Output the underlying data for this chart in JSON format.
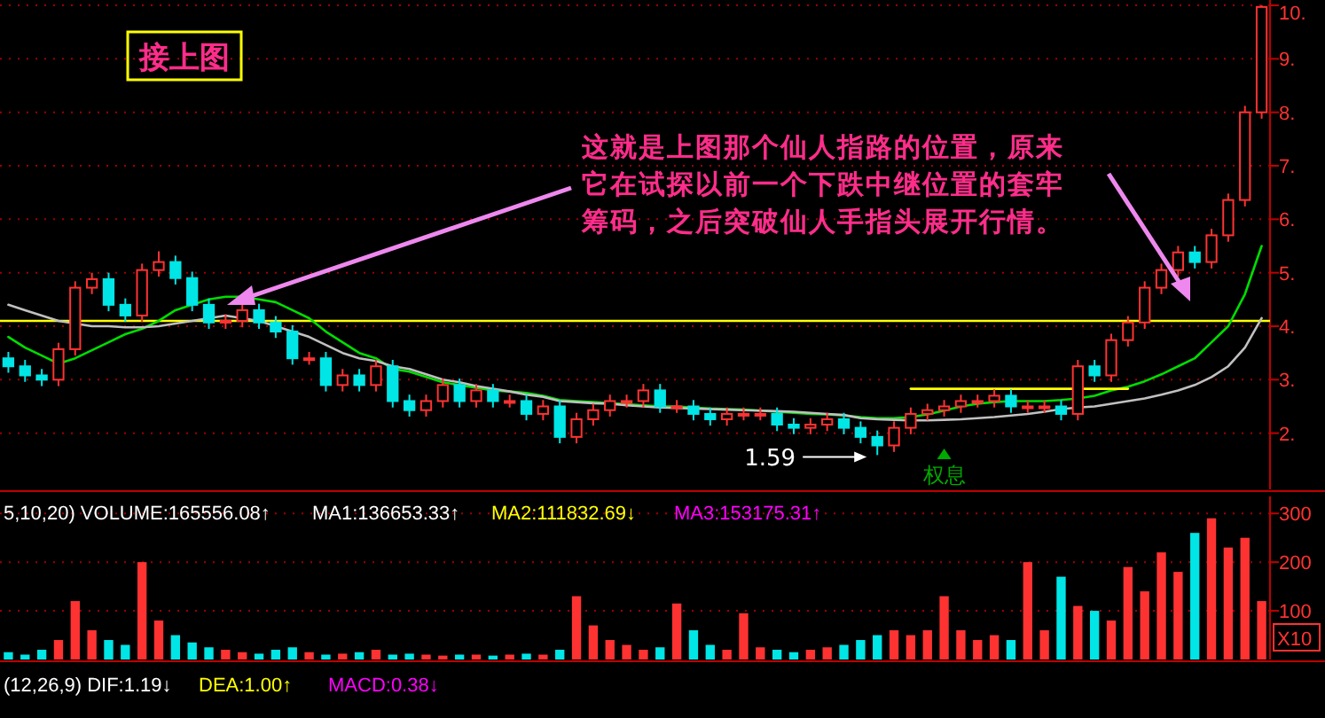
{
  "chart_data": [
    {
      "type": "candlestick",
      "title": "接上图",
      "tick_labels": "y",
      "grid": "y",
      "categories": [
        null,
        null,
        null,
        null,
        null,
        null,
        null,
        null,
        null,
        null,
        null,
        null,
        null,
        null,
        null,
        null,
        null,
        null,
        null,
        null,
        null,
        null,
        null,
        null,
        null,
        null,
        null,
        null,
        null,
        null,
        null,
        null,
        null,
        null,
        null,
        null,
        null,
        null,
        null,
        null,
        null,
        null,
        null,
        null,
        null,
        null,
        null,
        null,
        null,
        null,
        null,
        null,
        null,
        null,
        null,
        null,
        null,
        null,
        null,
        null,
        null,
        null,
        null,
        null,
        null,
        null,
        null,
        null,
        null,
        null,
        null,
        null,
        null,
        null,
        null,
        null
      ],
      "colors": [
        "#00e5e5",
        "#00e5e5",
        "#00e5e5",
        "#ff3232",
        "#ff3232",
        "#ff3232",
        "#00e5e5",
        "#00e5e5",
        "#ff3232",
        "#ff3232",
        "#00e5e5",
        "#00e5e5",
        "#00e5e5",
        "#ff3232",
        "#ff3232",
        "#00e5e5",
        "#00e5e5",
        "#00e5e5",
        "#ff3232",
        "#00e5e5",
        "#ff3232",
        "#00e5e5",
        "#ff3232",
        "#00e5e5",
        "#00e5e5",
        "#ff3232",
        "#ff3232",
        "#00e5e5",
        "#ff3232",
        "#00e5e5",
        "#ff3232",
        "#00e5e5",
        "#ff3232",
        "#00e5e5",
        "#ff3232",
        "#ff3232",
        "#ff3232",
        "#ff3232",
        "#ff3232",
        "#00e5e5",
        "#ff3232",
        "#00e5e5",
        "#00e5e5",
        "#ff3232",
        "#ff3232",
        "#ff3232",
        "#00e5e5",
        "#00e5e5",
        "#ff3232",
        "#ff3232",
        "#00e5e5",
        "#00e5e5",
        "#00e5e5",
        "#ff3232",
        "#ff3232",
        "#ff3232",
        "#ff3232",
        "#ff3232",
        "#ff3232",
        "#ff3232",
        "#00e5e5",
        "#ff3232",
        "#ff3232",
        "#00e5e5",
        "#ff3232",
        "#00e5e5",
        "#ff3232",
        "#ff3232",
        "#ff3232",
        "#ff3232",
        "#ff3232",
        "#00e5e5",
        "#ff3232",
        "#ff3232",
        "#ff3232",
        "#ff3232"
      ],
      "ohlc": [
        [
          3.4,
          3.52,
          3.13,
          3.25
        ],
        [
          3.25,
          3.37,
          2.96,
          3.08
        ],
        [
          3.08,
          3.2,
          2.88,
          3.0
        ],
        [
          3.0,
          3.69,
          2.88,
          3.57
        ],
        [
          3.57,
          4.84,
          3.45,
          4.72
        ],
        [
          4.72,
          5.0,
          4.6,
          4.88
        ],
        [
          4.88,
          5.0,
          4.28,
          4.4
        ],
        [
          4.4,
          4.52,
          4.08,
          4.2
        ],
        [
          4.2,
          5.17,
          4.08,
          5.05
        ],
        [
          5.05,
          5.4,
          4.93,
          5.2
        ],
        [
          5.2,
          5.32,
          4.78,
          4.9
        ],
        [
          4.9,
          5.02,
          4.28,
          4.4
        ],
        [
          4.4,
          4.52,
          3.95,
          4.07
        ],
        [
          4.07,
          4.22,
          3.95,
          4.1
        ],
        [
          4.1,
          4.42,
          3.98,
          4.3
        ],
        [
          4.3,
          4.42,
          3.95,
          4.07
        ],
        [
          4.07,
          4.19,
          3.78,
          3.9
        ],
        [
          3.9,
          4.02,
          3.28,
          3.4
        ],
        [
          3.4,
          3.52,
          3.28,
          3.4
        ],
        [
          3.4,
          3.52,
          2.78,
          2.9
        ],
        [
          2.9,
          3.2,
          2.78,
          3.08
        ],
        [
          3.08,
          3.2,
          2.78,
          2.9
        ],
        [
          2.9,
          3.37,
          2.78,
          3.25
        ],
        [
          3.25,
          3.37,
          2.48,
          2.6
        ],
        [
          2.6,
          2.72,
          2.31,
          2.43
        ],
        [
          2.43,
          2.72,
          2.31,
          2.6
        ],
        [
          2.6,
          3.02,
          2.48,
          2.9
        ],
        [
          2.9,
          3.02,
          2.48,
          2.6
        ],
        [
          2.6,
          2.92,
          2.48,
          2.8
        ],
        [
          2.8,
          2.92,
          2.48,
          2.6
        ],
        [
          2.6,
          2.72,
          2.48,
          2.6
        ],
        [
          2.6,
          2.72,
          2.24,
          2.36
        ],
        [
          2.36,
          2.62,
          2.24,
          2.5
        ],
        [
          2.5,
          2.62,
          1.81,
          1.93
        ],
        [
          1.93,
          2.38,
          1.81,
          2.26
        ],
        [
          2.26,
          2.55,
          2.14,
          2.43
        ],
        [
          2.43,
          2.72,
          2.31,
          2.6
        ],
        [
          2.6,
          2.72,
          2.48,
          2.6
        ],
        [
          2.6,
          2.92,
          2.48,
          2.8
        ],
        [
          2.8,
          2.92,
          2.38,
          2.5
        ],
        [
          2.5,
          2.62,
          2.38,
          2.5
        ],
        [
          2.5,
          2.62,
          2.24,
          2.36
        ],
        [
          2.36,
          2.48,
          2.14,
          2.26
        ],
        [
          2.26,
          2.48,
          2.14,
          2.36
        ],
        [
          2.36,
          2.48,
          2.24,
          2.36
        ],
        [
          2.36,
          2.48,
          2.24,
          2.36
        ],
        [
          2.36,
          2.48,
          2.04,
          2.16
        ],
        [
          2.16,
          2.28,
          1.98,
          2.1
        ],
        [
          2.1,
          2.28,
          1.98,
          2.16
        ],
        [
          2.16,
          2.38,
          2.04,
          2.26
        ],
        [
          2.26,
          2.38,
          1.98,
          2.1
        ],
        [
          2.1,
          2.22,
          1.81,
          1.93
        ],
        [
          1.93,
          2.05,
          1.59,
          1.77
        ],
        [
          1.77,
          2.22,
          1.65,
          2.1
        ],
        [
          2.1,
          2.48,
          1.98,
          2.36
        ],
        [
          2.36,
          2.55,
          2.24,
          2.43
        ],
        [
          2.43,
          2.62,
          2.31,
          2.5
        ],
        [
          2.5,
          2.72,
          2.38,
          2.6
        ],
        [
          2.6,
          2.72,
          2.48,
          2.6
        ],
        [
          2.6,
          2.82,
          2.48,
          2.7
        ],
        [
          2.7,
          2.82,
          2.38,
          2.5
        ],
        [
          2.5,
          2.62,
          2.38,
          2.5
        ],
        [
          2.5,
          2.62,
          2.38,
          2.5
        ],
        [
          2.5,
          2.62,
          2.24,
          2.36
        ],
        [
          2.36,
          3.37,
          2.24,
          3.25
        ],
        [
          3.25,
          3.37,
          2.96,
          3.08
        ],
        [
          3.08,
          3.86,
          2.96,
          3.74
        ],
        [
          3.74,
          4.19,
          3.62,
          4.07
        ],
        [
          4.07,
          4.84,
          3.95,
          4.72
        ],
        [
          4.72,
          5.17,
          4.6,
          5.05
        ],
        [
          5.05,
          5.5,
          4.93,
          5.38
        ],
        [
          5.38,
          5.5,
          5.08,
          5.2
        ],
        [
          5.2,
          5.82,
          5.08,
          5.7
        ],
        [
          5.7,
          6.48,
          5.58,
          6.36
        ],
        [
          6.36,
          8.12,
          6.24,
          8.0
        ],
        [
          8.0,
          10.0,
          7.88,
          9.97
        ]
      ],
      "series": [
        {
          "type": "line",
          "color": "#00dd00",
          "values": [
            3.8,
            3.6,
            3.45,
            3.3,
            3.4,
            3.55,
            3.7,
            3.85,
            3.95,
            4.1,
            4.3,
            4.4,
            4.5,
            4.55,
            4.55,
            4.5,
            4.45,
            4.3,
            4.15,
            3.9,
            3.7,
            3.5,
            3.4,
            3.2,
            3.15,
            3.05,
            2.95,
            2.9,
            2.85,
            2.8,
            2.78,
            2.75,
            2.7,
            2.62,
            2.6,
            2.58,
            2.56,
            2.54,
            2.52,
            2.5,
            2.5,
            2.48,
            2.46,
            2.45,
            2.44,
            2.42,
            2.4,
            2.38,
            2.36,
            2.35,
            2.33,
            2.3,
            2.28,
            2.28,
            2.3,
            2.35,
            2.42,
            2.5,
            2.55,
            2.58,
            2.6,
            2.6,
            2.6,
            2.62,
            2.65,
            2.7,
            2.8,
            2.87,
            2.97,
            3.1,
            3.25,
            3.4,
            3.7,
            4.0,
            4.6,
            5.5
          ]
        },
        {
          "type": "line",
          "color": "#c0c0c0",
          "values": [
            4.4,
            4.3,
            4.2,
            4.1,
            4.05,
            4.0,
            4.0,
            3.98,
            3.98,
            4.0,
            4.05,
            4.1,
            4.15,
            4.2,
            4.15,
            4.1,
            4.0,
            3.9,
            3.8,
            3.65,
            3.5,
            3.4,
            3.35,
            3.25,
            3.2,
            3.1,
            3.0,
            2.95,
            2.88,
            2.83,
            2.78,
            2.72,
            2.68,
            2.6,
            2.58,
            2.56,
            2.55,
            2.52,
            2.5,
            2.48,
            2.47,
            2.46,
            2.45,
            2.44,
            2.43,
            2.42,
            2.41,
            2.4,
            2.38,
            2.36,
            2.34,
            2.28,
            2.26,
            2.25,
            2.24,
            2.24,
            2.25,
            2.26,
            2.28,
            2.3,
            2.33,
            2.36,
            2.4,
            2.45,
            2.48,
            2.5,
            2.55,
            2.6,
            2.65,
            2.72,
            2.8,
            2.9,
            3.05,
            3.25,
            3.6,
            4.15
          ]
        },
        {
          "type": "line",
          "color": "#ffff00",
          "values": [
            null,
            null,
            null,
            null,
            null,
            null,
            null,
            null,
            null,
            null,
            null,
            null,
            null,
            null,
            null,
            null,
            null,
            null,
            null,
            null,
            null,
            null,
            null,
            null,
            null,
            null,
            null,
            null,
            null,
            null,
            null,
            null,
            null,
            null,
            null,
            null,
            null,
            null,
            null,
            null,
            null,
            null,
            null,
            null,
            null,
            null,
            null,
            null,
            null,
            null,
            null,
            null,
            null,
            null,
            2.83,
            2.83,
            2.83,
            2.83,
            2.83,
            2.83,
            2.83,
            2.83,
            2.83,
            2.83,
            2.83,
            2.83,
            2.83,
            2.83,
            null,
            null,
            null,
            null,
            null,
            null,
            null,
            null
          ]
        }
      ],
      "ylim": [
        0.95,
        10.1
      ],
      "yticks": [
        {
          "value": 2,
          "label": "2."
        },
        {
          "value": 3,
          "label": "3."
        },
        {
          "value": 4,
          "label": "4."
        },
        {
          "value": 5,
          "label": "5."
        },
        {
          "value": 6,
          "label": "6."
        },
        {
          "value": 7,
          "label": "7."
        },
        {
          "value": 8,
          "label": "8."
        },
        {
          "value": 9,
          "label": "9."
        },
        {
          "value": 10,
          "label": "10."
        }
      ],
      "ref_lines": [
        {
          "axis": "y",
          "value": 4.1,
          "color": "#ffff00"
        }
      ],
      "annotations": [
        "这就是上图那个仙人指路的位置，原来它在试探以前一个下跌中继位置的套牢筹码，之后突破仙人手指头展开行情。",
        "1.59",
        "权息"
      ]
    },
    {
      "type": "bar",
      "tick_labels": "y",
      "grid": "y",
      "categories": [
        null,
        null,
        null,
        null,
        null,
        null,
        null,
        null,
        null,
        null,
        null,
        null,
        null,
        null,
        null,
        null,
        null,
        null,
        null,
        null,
        null,
        null,
        null,
        null,
        null,
        null,
        null,
        null,
        null,
        null,
        null,
        null,
        null,
        null,
        null,
        null,
        null,
        null,
        null,
        null,
        null,
        null,
        null,
        null,
        null,
        null,
        null,
        null,
        null,
        null,
        null,
        null,
        null,
        null,
        null,
        null,
        null,
        null,
        null,
        null,
        null,
        null,
        null,
        null,
        null,
        null,
        null,
        null,
        null,
        null,
        null,
        null,
        null,
        null,
        null,
        null
      ],
      "values": [
        15,
        10,
        20,
        40,
        120,
        60,
        40,
        30,
        200,
        80,
        50,
        35,
        25,
        20,
        15,
        12,
        20,
        25,
        15,
        10,
        12,
        15,
        20,
        10,
        12,
        10,
        8,
        10,
        10,
        8,
        10,
        12,
        10,
        20,
        130,
        70,
        40,
        30,
        20,
        25,
        115,
        60,
        30,
        20,
        95,
        25,
        20,
        15,
        20,
        25,
        30,
        40,
        50,
        60,
        50,
        60,
        130,
        60,
        40,
        50,
        40,
        200,
        60,
        170,
        110,
        100,
        80,
        190,
        140,
        220,
        180,
        260,
        290,
        230,
        250,
        120
      ],
      "colors": [
        "#00e5e5",
        "#00e5e5",
        "#00e5e5",
        "#ff3232",
        "#ff3232",
        "#ff3232",
        "#00e5e5",
        "#00e5e5",
        "#ff3232",
        "#ff3232",
        "#00e5e5",
        "#00e5e5",
        "#00e5e5",
        "#ff3232",
        "#ff3232",
        "#00e5e5",
        "#00e5e5",
        "#00e5e5",
        "#ff3232",
        "#00e5e5",
        "#ff3232",
        "#00e5e5",
        "#ff3232",
        "#00e5e5",
        "#00e5e5",
        "#ff3232",
        "#ff3232",
        "#00e5e5",
        "#ff3232",
        "#00e5e5",
        "#ff3232",
        "#00e5e5",
        "#ff3232",
        "#00e5e5",
        "#ff3232",
        "#ff3232",
        "#ff3232",
        "#ff3232",
        "#ff3232",
        "#00e5e5",
        "#ff3232",
        "#00e5e5",
        "#00e5e5",
        "#ff3232",
        "#ff3232",
        "#ff3232",
        "#00e5e5",
        "#00e5e5",
        "#ff3232",
        "#ff3232",
        "#00e5e5",
        "#00e5e5",
        "#00e5e5",
        "#ff3232",
        "#ff3232",
        "#ff3232",
        "#ff3232",
        "#ff3232",
        "#ff3232",
        "#ff3232",
        "#00e5e5",
        "#ff3232",
        "#ff3232",
        "#00e5e5",
        "#ff3232",
        "#00e5e5",
        "#ff3232",
        "#ff3232",
        "#ff3232",
        "#ff3232",
        "#ff3232",
        "#00e5e5",
        "#ff3232",
        "#ff3232",
        "#ff3232",
        "#ff3232"
      ],
      "ylim": [
        0,
        335
      ],
      "yticks": [
        100,
        200,
        300
      ],
      "annotations": [
        "5,10,20) VOLUME:165556.08↑",
        "MA1:136653.33↑",
        "MA2:111832.69↓",
        "MA3:153175.31↑",
        "X10"
      ]
    },
    {
      "type": "other",
      "annotations": [
        "(12,26,9) DIF:1.19↓",
        "DEA:1.00↑",
        "MACD:0.38↓"
      ]
    }
  ]
}
